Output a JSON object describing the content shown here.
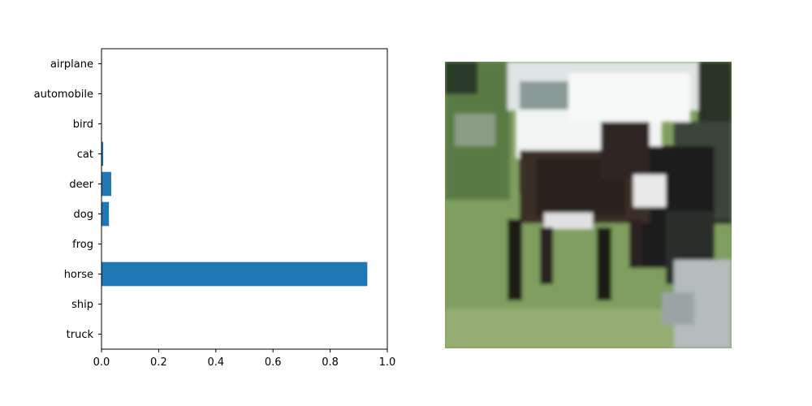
{
  "chart_data": [
    {
      "type": "bar",
      "orientation": "horizontal",
      "categories": [
        "airplane",
        "automobile",
        "bird",
        "cat",
        "deer",
        "dog",
        "frog",
        "horse",
        "ship",
        "truck"
      ],
      "values": [
        0.001,
        0.0005,
        0.001,
        0.006,
        0.034,
        0.026,
        0.001,
        0.93,
        0.0005,
        0.0005
      ],
      "xlim": [
        0.0,
        1.0
      ],
      "xticks": [
        "0.0",
        "0.2",
        "0.4",
        "0.6",
        "0.8",
        "1.0"
      ],
      "title": "",
      "xlabel": "",
      "ylabel": "",
      "grid": false,
      "bar_color": "#1f77b4"
    }
  ],
  "image_panel": {
    "subject": "horse",
    "palette": {
      "sky": "#f2f4f4",
      "building": "#d9dcdc",
      "shadow": "#3c4a3a",
      "foliage": "#5a7a45",
      "grass": "#7f9e5f",
      "grass_light": "#95ad72",
      "horse_dark": "#2a201c",
      "horse_mid": "#3b2d26",
      "horse_white": "#e8e8e8",
      "dog_dark": "#1c1f1c",
      "ground_grey": "#b4bcbc"
    }
  }
}
